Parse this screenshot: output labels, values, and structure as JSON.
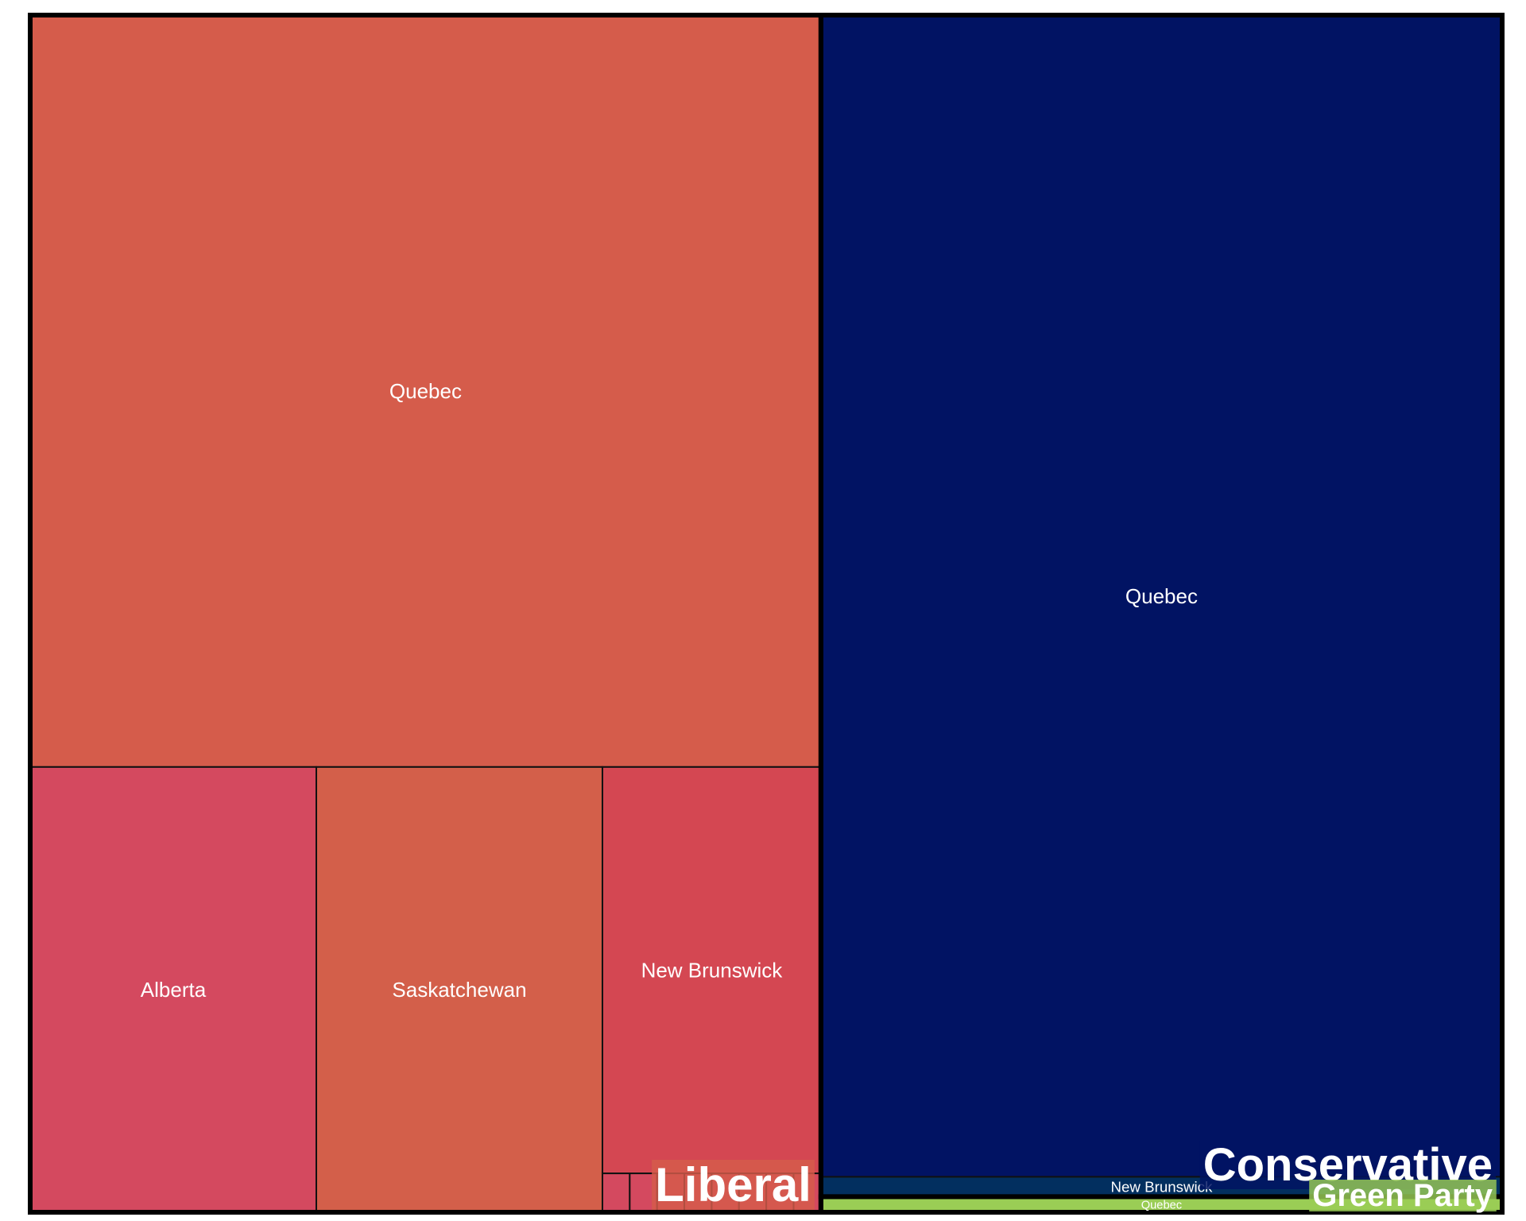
{
  "chart_data": {
    "type": "treemap",
    "title": "",
    "groups": [
      {
        "name": "Liberal",
        "tiles": [
          {
            "label": "Quebec",
            "value": 6160,
            "color": "#D55C4B"
          },
          {
            "label": "Alberta",
            "value": 1320,
            "color": "#D4495F"
          },
          {
            "label": "Saskatchewan",
            "value": 1320,
            "color": "#D35F4A"
          },
          {
            "label": "New Brunswick",
            "value": 920,
            "color": "#D44752"
          },
          {
            "label": "",
            "value": 11,
            "color": "#D4495F"
          },
          {
            "label": "",
            "value": 11,
            "color": "#D4495F"
          },
          {
            "label": "",
            "value": 11,
            "color": "#D4495F"
          },
          {
            "label": "",
            "value": 11,
            "color": "#D4495F"
          },
          {
            "label": "",
            "value": 11,
            "color": "#D4495F"
          },
          {
            "label": "",
            "value": 11,
            "color": "#D4495F"
          },
          {
            "label": "",
            "value": 11,
            "color": "#D4495F"
          },
          {
            "label": "",
            "value": 11,
            "color": "#D4495F"
          }
        ]
      },
      {
        "name": "Conservative",
        "tiles": [
          {
            "label": "Quebec",
            "value": 8200,
            "color": "#011363"
          },
          {
            "label": "New Brunswick",
            "value": 140,
            "color": "#022F5F"
          }
        ]
      },
      {
        "name": "Green Party",
        "tiles": [
          {
            "label": "Quebec",
            "value": 110,
            "color": "#9ACD55"
          }
        ]
      }
    ],
    "legend": false,
    "grid": false
  }
}
